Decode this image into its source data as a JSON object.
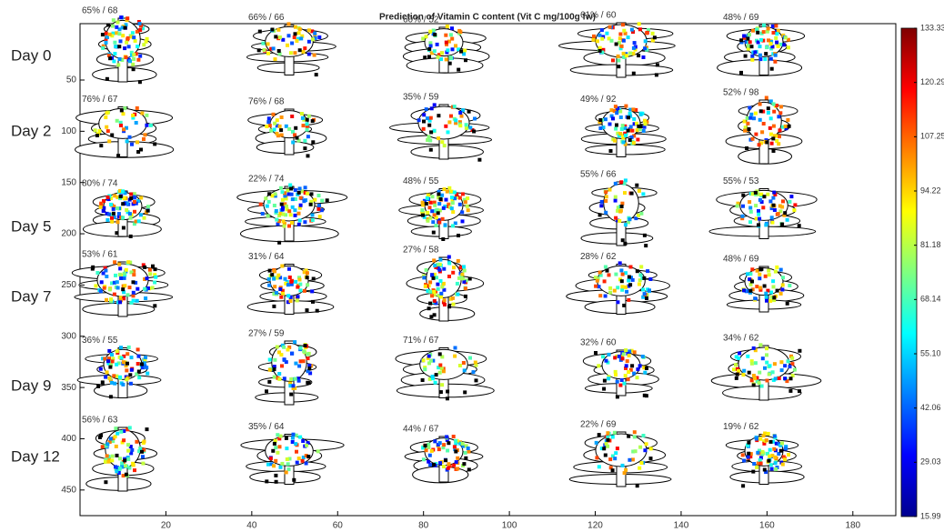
{
  "chart_data": {
    "type": "image-grid",
    "title": "Prediction of Vitamin C content (Vit C mg/100g fw)",
    "row_labels": [
      "Day 0",
      "Day 2",
      "Day 5",
      "Day 7",
      "Day 9",
      "Day 12"
    ],
    "panel_labels": [
      [
        "65% / 68",
        "66% / 66",
        "60% / 52",
        "61% / 60",
        "48% / 69"
      ],
      [
        "76% / 67",
        "76% / 68",
        "35% / 59",
        "49% / 92",
        "52% / 98"
      ],
      [
        "80% / 74",
        "22% / 74",
        "48% / 55",
        "55% / 66",
        "55% / 53"
      ],
      [
        "53% / 61",
        "31% / 64",
        "27% / 58",
        "28% / 62",
        "48% / 69"
      ],
      [
        "36% / 55",
        "27% / 59",
        "71% / 67",
        "32% / 60",
        "34% / 62"
      ],
      [
        "56% / 63",
        "35% / 64",
        "44% / 67",
        "22% / 69",
        "19% / 62"
      ]
    ],
    "xlim": [
      0,
      190
    ],
    "ylim": [
      -5,
      475
    ],
    "xticks": [
      20,
      40,
      60,
      80,
      100,
      120,
      140,
      160,
      180
    ],
    "yticks": [
      50,
      100,
      150,
      200,
      250,
      300,
      350,
      400,
      450
    ],
    "colorbar": {
      "lim": [
        15.99,
        133.33
      ],
      "ticks": [
        15.99,
        29.03,
        42.06,
        {
          "value": 55.1,
          "label": "55.10"
        },
        68.14,
        81.18,
        94.22,
        107.25,
        120.29,
        133.33
      ]
    }
  }
}
